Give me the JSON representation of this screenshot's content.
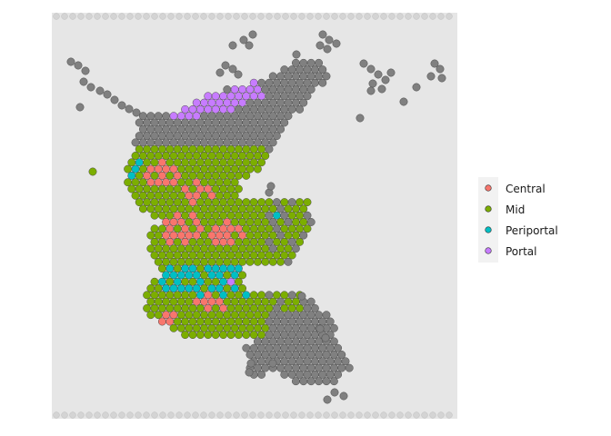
{
  "chart_data": {
    "type": "scatter",
    "title": "",
    "xlabel": "",
    "ylabel": "",
    "grid": false,
    "legend_position": "right",
    "background_spots_color": "#808080",
    "tissue_color": "#e8e8e8",
    "legend": [
      {
        "label": "Central",
        "color": "#F8766D"
      },
      {
        "label": "Mid",
        "color": "#7CAE00"
      },
      {
        "label": "Periportal",
        "color": "#00BFC4"
      },
      {
        "label": "Portal",
        "color": "#C77CFF"
      }
    ]
  }
}
